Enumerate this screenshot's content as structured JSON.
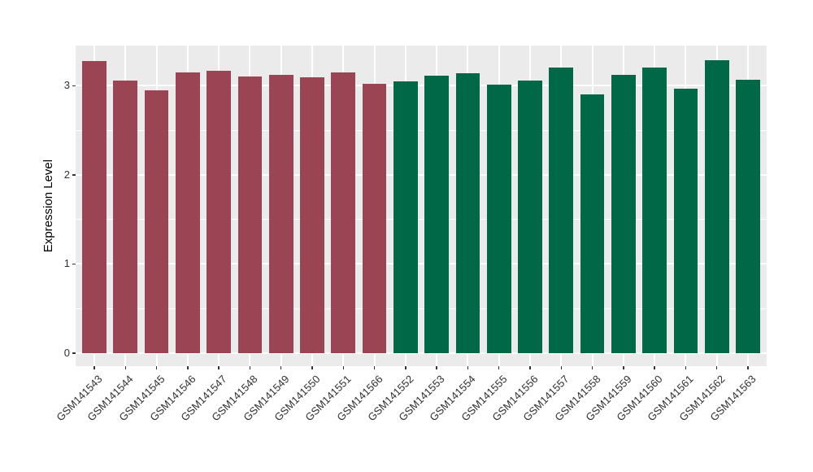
{
  "chart": {
    "y_axis_title": "Expression Level",
    "y_tick_labels": [
      "0",
      "1",
      "2",
      "3"
    ]
  },
  "colors": {
    "figure_background": "#FFFFFF",
    "panel_background": "#EBEBEB",
    "gridline": "#FFFFFF",
    "tick_mark": "#333333",
    "axis_text": "#303030",
    "group_maroon": "#9B4453",
    "group_green": "#006847"
  },
  "chart_data": {
    "type": "bar",
    "title": "",
    "xlabel": "",
    "ylabel": "Expression Level",
    "categories": [
      "GSM141543",
      "GSM141544",
      "GSM141545",
      "GSM141546",
      "GSM141547",
      "GSM141548",
      "GSM141549",
      "GSM141550",
      "GSM141551",
      "GSM141566",
      "GSM141552",
      "GSM141553",
      "GSM141554",
      "GSM141555",
      "GSM141556",
      "GSM141557",
      "GSM141558",
      "GSM141559",
      "GSM141560",
      "GSM141561",
      "GSM141562",
      "GSM141563"
    ],
    "values": [
      3.28,
      3.06,
      2.95,
      3.15,
      3.17,
      3.1,
      3.12,
      3.09,
      3.15,
      3.02,
      3.05,
      3.11,
      3.14,
      3.01,
      3.06,
      3.2,
      2.9,
      3.12,
      3.2,
      2.97,
      3.29,
      3.07
    ],
    "bar_groups": [
      "maroon",
      "maroon",
      "maroon",
      "maroon",
      "maroon",
      "maroon",
      "maroon",
      "maroon",
      "maroon",
      "maroon",
      "green",
      "green",
      "green",
      "green",
      "green",
      "green",
      "green",
      "green",
      "green",
      "green",
      "green",
      "green"
    ],
    "group_colors": {
      "maroon": "#9B4453",
      "green": "#006847"
    },
    "ylim": [
      0,
      3.45
    ],
    "y_major_gridlines": [
      0,
      1,
      2,
      3
    ],
    "y_minor_gridlines": [
      0.5,
      1.5,
      2.5
    ],
    "grid": "on",
    "legend": "none",
    "bar_width_fraction": 0.72
  }
}
